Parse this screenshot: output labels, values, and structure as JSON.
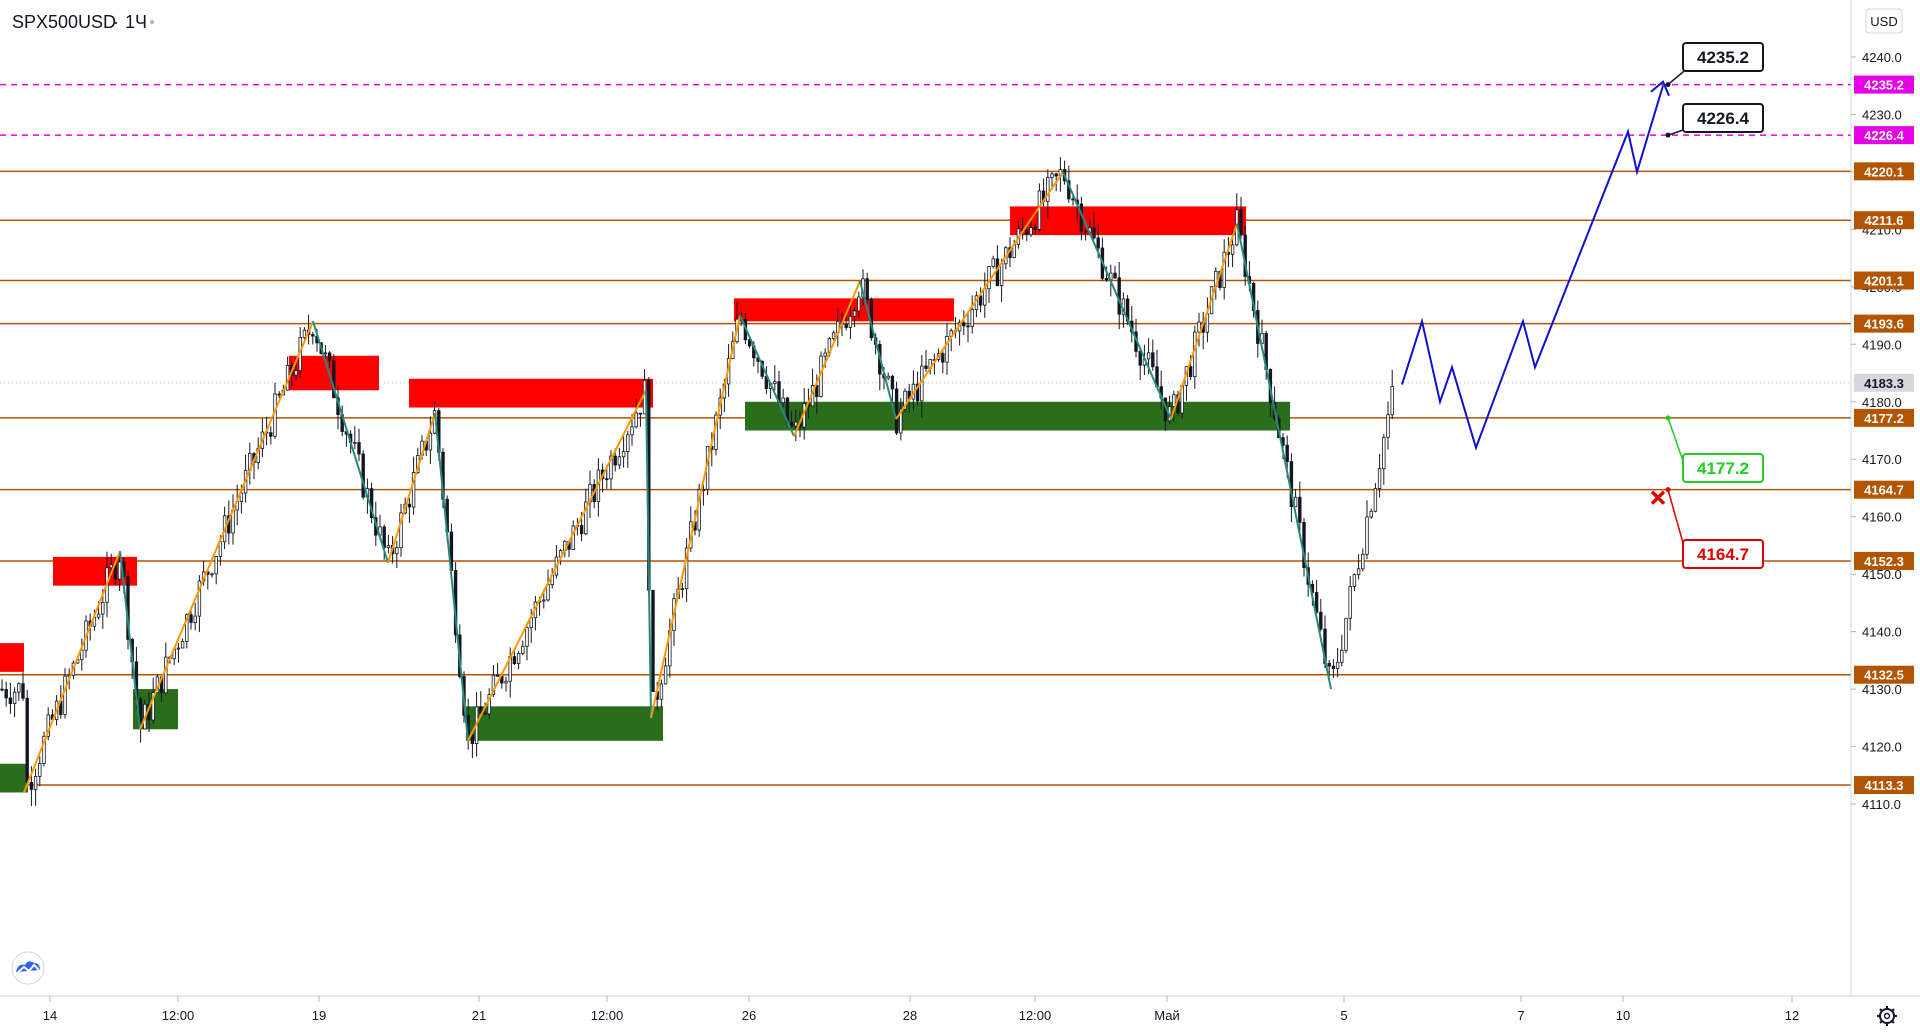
{
  "header": {
    "symbol": "SPX500USD",
    "separator": "·",
    "interval": "1Ч",
    "currency": "USD"
  },
  "icons": {
    "logo": "tradingview-cloud-icon",
    "settings": "gear-icon",
    "cancel": "red-x-icon"
  },
  "colors": {
    "orange_level": "#b35500",
    "magenta_level": "#e600e6",
    "zigzag_orange": "#ff9800",
    "zigzag_teal": "#26897a",
    "projection": "#1010d0",
    "supply_zone": "#ff0000",
    "demand_zone": "#2a6e1b",
    "candle": "#131722",
    "current_price": "#d6d8de"
  },
  "chart_data": {
    "type": "candlestick",
    "instrument": "SPX500USD",
    "timeframe": "1Ч",
    "y_axis": {
      "min": 4105,
      "max": 4245,
      "ticks": [
        4110.0,
        4120.0,
        4130.0,
        4140.0,
        4150.0,
        4160.0,
        4170.0,
        4180.0,
        4190.0,
        4200.0,
        4210.0,
        4220.0,
        4230.0,
        4240.0
      ],
      "tick_labels": [
        "4110.0",
        "4120.0",
        "4130.0",
        "4140.0",
        "4150.0",
        "4160.0",
        "4170.0",
        "4180.0",
        "4190.0",
        "4200.0",
        "4210.0",
        "4220.0",
        "4230.0",
        "4240.0"
      ]
    },
    "x_axis": {
      "ticks": [
        {
          "label": "14",
          "date": "2021-04-14"
        },
        {
          "label": "12:00",
          "date": "2021-04-15 12:00"
        },
        {
          "label": "19",
          "date": "2021-04-19"
        },
        {
          "label": "21",
          "date": "2021-04-21"
        },
        {
          "label": "12:00",
          "date": "2021-04-22 12:00"
        },
        {
          "label": "26",
          "date": "2021-04-26"
        },
        {
          "label": "28",
          "date": "2021-04-28"
        },
        {
          "label": "12:00",
          "date": "2021-04-29 12:00"
        },
        {
          "label": "Май",
          "date": "2021-05-03"
        },
        {
          "label": "5",
          "date": "2021-05-05"
        },
        {
          "label": "7",
          "date": "2021-05-07"
        },
        {
          "label": "10",
          "date": "2021-05-10"
        },
        {
          "label": "12",
          "date": "2021-05-12"
        }
      ]
    },
    "current_price": {
      "value": 4183.3,
      "label": "4183.3"
    },
    "levels": [
      {
        "value": 4235.2,
        "label": "4235.2",
        "style": "dashed",
        "color": "#e600e6"
      },
      {
        "value": 4226.4,
        "label": "4226.4",
        "style": "dashed",
        "color": "#e600e6"
      },
      {
        "value": 4220.1,
        "label": "4220.1",
        "style": "solid",
        "color": "#b35500"
      },
      {
        "value": 4211.6,
        "label": "4211.6",
        "style": "solid",
        "color": "#b35500"
      },
      {
        "value": 4201.1,
        "label": "4201.1",
        "style": "solid",
        "color": "#b35500"
      },
      {
        "value": 4193.6,
        "label": "4193.6",
        "style": "solid",
        "color": "#b35500"
      },
      {
        "value": 4177.2,
        "label": "4177.2",
        "style": "solid",
        "color": "#b35500"
      },
      {
        "value": 4164.7,
        "label": "4164.7",
        "style": "solid",
        "color": "#b35500"
      },
      {
        "value": 4152.3,
        "label": "4152.3",
        "style": "solid",
        "color": "#b35500"
      },
      {
        "value": 4132.5,
        "label": "4132.5",
        "style": "solid",
        "color": "#b35500"
      },
      {
        "value": 4113.3,
        "label": "4113.3",
        "style": "solid",
        "color": "#b35500"
      }
    ],
    "callouts": [
      {
        "label": "4235.2",
        "value": 4235.2,
        "color": "#131722",
        "marker": "dot"
      },
      {
        "label": "4226.4",
        "value": 4226.4,
        "color": "#131722",
        "marker": "dot"
      },
      {
        "label": "4177.2",
        "value": 4177.2,
        "color": "#22cc22",
        "marker": "dot"
      },
      {
        "label": "4164.7",
        "value": 4164.7,
        "color": "#e00000",
        "marker": "x"
      }
    ],
    "zones": [
      {
        "type": "supply",
        "top": 4138,
        "bottom": 4133
      },
      {
        "type": "supply",
        "top": 4153,
        "bottom": 4148
      },
      {
        "type": "supply",
        "top": 4188,
        "bottom": 4182
      },
      {
        "type": "supply",
        "top": 4184,
        "bottom": 4179
      },
      {
        "type": "supply",
        "top": 4198,
        "bottom": 4194
      },
      {
        "type": "supply",
        "top": 4214,
        "bottom": 4209
      },
      {
        "type": "demand",
        "top": 4117,
        "bottom": 4112
      },
      {
        "type": "demand",
        "top": 4130,
        "bottom": 4123
      },
      {
        "type": "demand",
        "top": 4127,
        "bottom": 4121
      },
      {
        "type": "demand",
        "top": 4180,
        "bottom": 4175
      }
    ],
    "zigzag": [
      4112,
      4154,
      4123,
      4194,
      4152,
      4178,
      4121,
      4182,
      4125,
      4195,
      4174,
      4201,
      4177,
      4220,
      4177,
      4211,
      4130
    ],
    "projection": [
      4183,
      4194,
      4180,
      4186,
      4172,
      4194,
      4186,
      4227,
      4220,
      4235
    ]
  }
}
